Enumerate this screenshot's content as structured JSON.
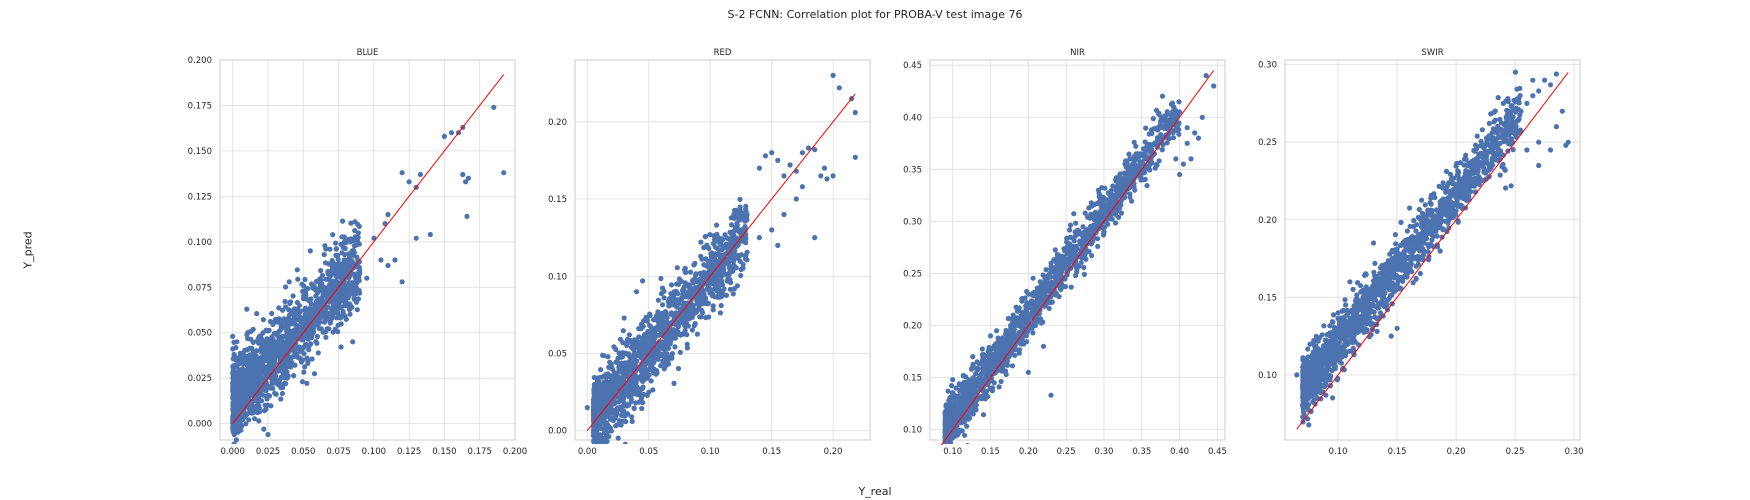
{
  "figure": {
    "title": "S-2 FCNN: Correlation plot for PROBA-V test image 76",
    "xlabel": "Y_real",
    "ylabel": "Y_pred"
  },
  "colors": {
    "points": "#4c72b0",
    "identity_line": "#ff0000",
    "grid": "#dddddd",
    "spine": "#cccccc"
  },
  "chart_data": [
    {
      "type": "scatter",
      "title": "BLUE",
      "xlim": [
        -0.009,
        0.2
      ],
      "ylim": [
        -0.009,
        0.2
      ],
      "xticks": [
        "0.000",
        "0.025",
        "0.050",
        "0.075",
        "0.100",
        "0.125",
        "0.150",
        "0.175",
        "0.200"
      ],
      "yticks": [
        "0.000",
        "0.025",
        "0.050",
        "0.075",
        "0.100",
        "0.125",
        "0.150",
        "0.175",
        "0.200"
      ],
      "identity_line": [
        0.0,
        0.192
      ],
      "cloud": {
        "n": 1500,
        "x_min": 0.0,
        "x_max": 0.09,
        "slope": 0.82,
        "intercept": 0.013,
        "spread": 0.011
      },
      "points": [
        [
          0.0,
          0.048
        ],
        [
          0.003,
          0.045
        ],
        [
          0.025,
          -0.006
        ],
        [
          0.022,
          -0.003
        ],
        [
          0.01,
          0.063
        ],
        [
          0.04,
          0.078
        ],
        [
          0.055,
          0.095
        ],
        [
          0.085,
          0.045
        ],
        [
          0.1,
          0.102
        ],
        [
          0.11,
          0.115
        ],
        [
          0.12,
          0.138
        ],
        [
          0.125,
          0.133
        ],
        [
          0.13,
          0.13
        ],
        [
          0.133,
          0.137
        ],
        [
          0.12,
          0.078
        ],
        [
          0.115,
          0.09
        ],
        [
          0.13,
          0.102
        ],
        [
          0.14,
          0.104
        ],
        [
          0.15,
          0.158
        ],
        [
          0.155,
          0.16
        ],
        [
          0.16,
          0.16
        ],
        [
          0.163,
          0.163
        ],
        [
          0.163,
          0.137
        ],
        [
          0.165,
          0.133
        ],
        [
          0.167,
          0.135
        ],
        [
          0.166,
          0.114
        ],
        [
          0.185,
          0.174
        ],
        [
          0.192,
          0.138
        ],
        [
          0.105,
          0.09
        ],
        [
          0.11,
          0.087
        ],
        [
          0.095,
          0.08
        ],
        [
          0.108,
          0.11
        ]
      ]
    },
    {
      "type": "scatter",
      "title": "RED",
      "xlim": [
        -0.01,
        0.23
      ],
      "ylim": [
        -0.006,
        0.24
      ],
      "xticks": [
        "0.00",
        "0.05",
        "0.10",
        "0.15",
        "0.20"
      ],
      "yticks": [
        "0.00",
        "0.05",
        "0.10",
        "0.15",
        "0.20"
      ],
      "identity_line": [
        0.0,
        0.218
      ],
      "cloud": {
        "n": 1500,
        "x_min": 0.005,
        "x_max": 0.13,
        "slope": 0.97,
        "intercept": 0.003,
        "spread": 0.012
      },
      "points": [
        [
          0.0,
          0.015
        ],
        [
          0.005,
          0.02
        ],
        [
          0.03,
          0.073
        ],
        [
          0.04,
          0.09
        ],
        [
          0.045,
          0.097
        ],
        [
          0.14,
          0.17
        ],
        [
          0.145,
          0.178
        ],
        [
          0.15,
          0.18
        ],
        [
          0.155,
          0.175
        ],
        [
          0.16,
          0.165
        ],
        [
          0.165,
          0.172
        ],
        [
          0.17,
          0.168
        ],
        [
          0.175,
          0.18
        ],
        [
          0.18,
          0.183
        ],
        [
          0.185,
          0.182
        ],
        [
          0.19,
          0.165
        ],
        [
          0.193,
          0.17
        ],
        [
          0.195,
          0.163
        ],
        [
          0.185,
          0.125
        ],
        [
          0.2,
          0.165
        ],
        [
          0.2,
          0.23
        ],
        [
          0.205,
          0.222
        ],
        [
          0.215,
          0.215
        ],
        [
          0.218,
          0.206
        ],
        [
          0.218,
          0.177
        ],
        [
          0.175,
          0.158
        ],
        [
          0.17,
          0.15
        ],
        [
          0.16,
          0.14
        ],
        [
          0.15,
          0.13
        ],
        [
          0.155,
          0.12
        ],
        [
          0.13,
          0.14
        ],
        [
          0.14,
          0.125
        ]
      ]
    },
    {
      "type": "scatter",
      "title": "NIR",
      "xlim": [
        0.07,
        0.46
      ],
      "ylim": [
        0.09,
        0.455
      ],
      "xticks": [
        "0.10",
        "0.15",
        "0.20",
        "0.25",
        "0.30",
        "0.35",
        "0.40",
        "0.45"
      ],
      "yticks": [
        "0.10",
        "0.15",
        "0.20",
        "0.25",
        "0.30",
        "0.35",
        "0.40",
        "0.45"
      ],
      "identity_line": [
        0.085,
        0.445
      ],
      "cloud": {
        "n": 1700,
        "x_min": 0.09,
        "x_max": 0.4,
        "slope": 0.99,
        "intercept": 0.012,
        "spread": 0.011
      },
      "points": [
        [
          0.09,
          0.115
        ],
        [
          0.1,
          0.148
        ],
        [
          0.095,
          0.128
        ],
        [
          0.11,
          0.118
        ],
        [
          0.12,
          0.128
        ],
        [
          0.23,
          0.133
        ],
        [
          0.38,
          0.4
        ],
        [
          0.385,
          0.395
        ],
        [
          0.4,
          0.405
        ],
        [
          0.41,
          0.39
        ],
        [
          0.41,
          0.375
        ],
        [
          0.415,
          0.36
        ],
        [
          0.42,
          0.385
        ],
        [
          0.425,
          0.38
        ],
        [
          0.43,
          0.4
        ],
        [
          0.435,
          0.44
        ],
        [
          0.445,
          0.43
        ],
        [
          0.405,
          0.355
        ],
        [
          0.395,
          0.36
        ],
        [
          0.4,
          0.345
        ],
        [
          0.2,
          0.155
        ],
        [
          0.22,
          0.18
        ],
        [
          0.18,
          0.21
        ],
        [
          0.15,
          0.19
        ],
        [
          0.14,
          0.17
        ]
      ]
    },
    {
      "type": "scatter",
      "title": "SWIR",
      "xlim": [
        0.055,
        0.305
      ],
      "ylim": [
        0.058,
        0.303
      ],
      "xticks": [
        "0.10",
        "0.15",
        "0.20",
        "0.25",
        "0.30"
      ],
      "yticks": [
        "0.10",
        "0.15",
        "0.20",
        "0.25",
        "0.30"
      ],
      "identity_line": [
        0.065,
        0.295
      ],
      "cloud": {
        "n": 1700,
        "x_min": 0.07,
        "x_max": 0.255,
        "slope": 0.96,
        "intercept": 0.025,
        "spread": 0.009
      },
      "points": [
        [
          0.065,
          0.1
        ],
        [
          0.07,
          0.105
        ],
        [
          0.075,
          0.1
        ],
        [
          0.1,
          0.14
        ],
        [
          0.11,
          0.16
        ],
        [
          0.13,
          0.185
        ],
        [
          0.145,
          0.125
        ],
        [
          0.15,
          0.13
        ],
        [
          0.255,
          0.27
        ],
        [
          0.26,
          0.275
        ],
        [
          0.265,
          0.28
        ],
        [
          0.27,
          0.283
        ],
        [
          0.275,
          0.29
        ],
        [
          0.28,
          0.287
        ],
        [
          0.285,
          0.294
        ],
        [
          0.265,
          0.29
        ],
        [
          0.27,
          0.25
        ],
        [
          0.27,
          0.235
        ],
        [
          0.28,
          0.245
        ],
        [
          0.285,
          0.26
        ],
        [
          0.29,
          0.27
        ],
        [
          0.295,
          0.25
        ],
        [
          0.293,
          0.248
        ],
        [
          0.26,
          0.245
        ],
        [
          0.25,
          0.26
        ],
        [
          0.24,
          0.275
        ]
      ]
    }
  ]
}
